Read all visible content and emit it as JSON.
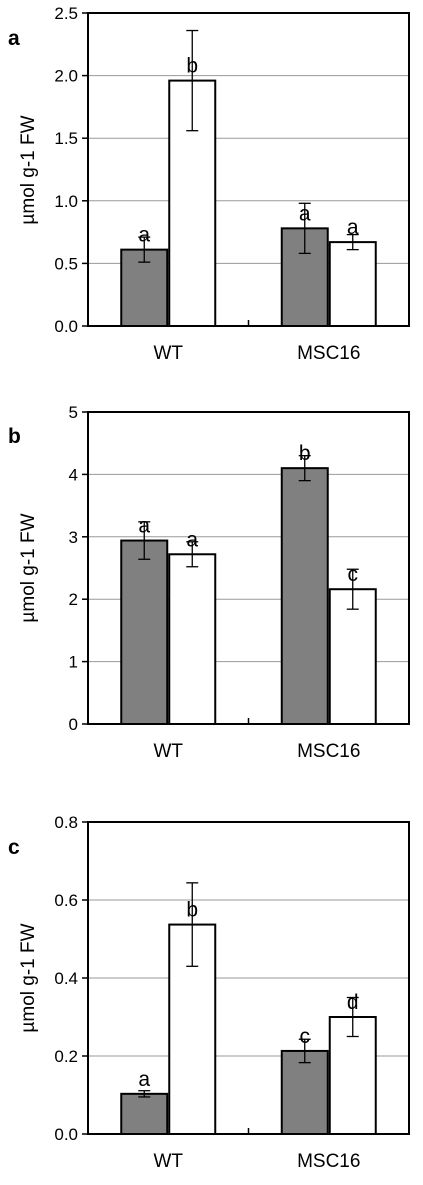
{
  "chart_data": [
    {
      "type": "bar",
      "panel_label": "a",
      "categories": [
        "WT",
        "MSC16"
      ],
      "ylabel": "µmol g-1 FW",
      "ylim": [
        0,
        2.5
      ],
      "yticks": [
        "0.0",
        "0.5",
        "1.0",
        "1.5",
        "2.0",
        "2.5"
      ],
      "grid": true,
      "series": [
        {
          "color": "#808080",
          "values": [
            0.61,
            0.78
          ],
          "errors": [
            0.1,
            0.2
          ],
          "letters": [
            "a",
            "a"
          ]
        },
        {
          "color": "#ffffff",
          "values": [
            1.96,
            0.67
          ],
          "errors": [
            0.4,
            0.06
          ],
          "letters": [
            "b",
            "a"
          ]
        }
      ]
    },
    {
      "type": "bar",
      "panel_label": "b",
      "categories": [
        "WT",
        "MSC16"
      ],
      "ylabel": "µmol g-1 FW",
      "ylim": [
        0,
        5
      ],
      "yticks": [
        "0",
        "1",
        "2",
        "3",
        "4",
        "5"
      ],
      "grid": true,
      "series": [
        {
          "color": "#808080",
          "values": [
            2.94,
            4.1
          ],
          "errors": [
            0.3,
            0.2
          ],
          "letters": [
            "a",
            "b"
          ]
        },
        {
          "color": "#ffffff",
          "values": [
            2.72,
            2.16
          ],
          "errors": [
            0.2,
            0.32
          ],
          "letters": [
            "a",
            "c"
          ]
        }
      ]
    },
    {
      "type": "bar",
      "panel_label": "c",
      "categories": [
        "WT",
        "MSC16"
      ],
      "ylabel": "µmol g-1 FW",
      "ylim": [
        0,
        0.8
      ],
      "yticks": [
        "0.0",
        "0.2",
        "0.4",
        "0.6",
        "0.8"
      ],
      "grid": true,
      "series": [
        {
          "color": "#808080",
          "values": [
            0.103,
            0.213
          ],
          "errors": [
            0.008,
            0.03
          ],
          "letters": [
            "a",
            "c"
          ]
        },
        {
          "color": "#ffffff",
          "values": [
            0.537,
            0.3
          ],
          "errors": [
            0.107,
            0.05
          ],
          "letters": [
            "b",
            "d"
          ]
        }
      ]
    }
  ]
}
